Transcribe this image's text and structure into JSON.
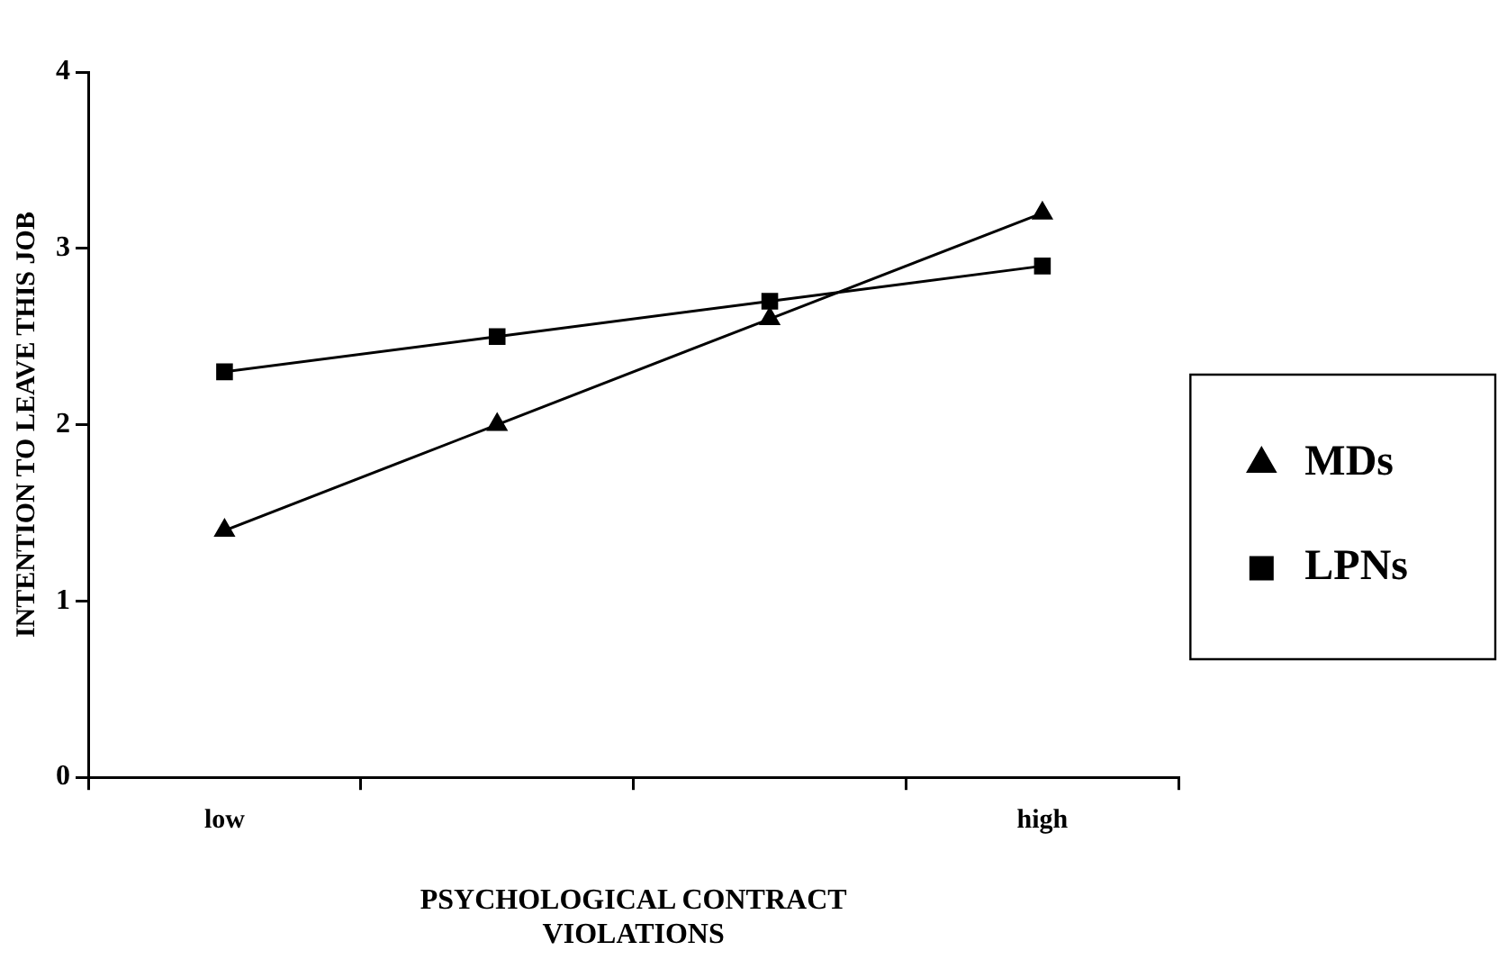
{
  "chart_data": {
    "type": "line",
    "xlabel": "PSYCHOLOGICAL CONTRACT VIOLATIONS",
    "ylabel": "INTENTION TO LEAVE THIS JOB",
    "categories": [
      "low",
      null,
      null,
      "high"
    ],
    "series": [
      {
        "name": "MDs",
        "color": "#000000",
        "marker": "triangle",
        "values": [
          1.4,
          2.0,
          2.6,
          3.2
        ]
      },
      {
        "name": "LPNs",
        "color": "#000000",
        "marker": "square",
        "values": [
          2.3,
          2.5,
          2.7,
          2.9
        ]
      }
    ],
    "ylim": [
      0,
      4
    ],
    "yticks": [
      0,
      1,
      2,
      3,
      4
    ],
    "grid": false,
    "legend": "right",
    "line_style": "solid"
  }
}
